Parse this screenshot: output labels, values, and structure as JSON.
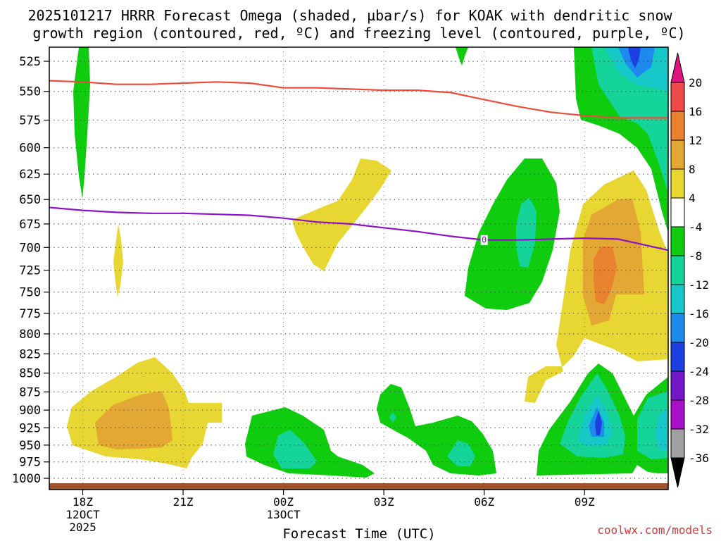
{
  "chart_data": {
    "type": "time-height",
    "title_line1": "2025101217 HRRR Forecast Omega (shaded, µbar/s) for KOAK with dendritic snow",
    "title_line2": "growth region (contoured, red, ºC) and freezing level (contoured, purple, ºC)",
    "xlabel": "Forecast Time (UTC)",
    "credit": "coolwx.com/models",
    "y_ticks": [
      525,
      550,
      575,
      600,
      625,
      650,
      675,
      700,
      725,
      750,
      775,
      800,
      825,
      850,
      875,
      900,
      925,
      950,
      975,
      1000
    ],
    "x_ticks": [
      {
        "hour": 18,
        "label": "18Z",
        "date": "12OCT",
        "year": "2025"
      },
      {
        "hour": 21,
        "label": "21Z",
        "date": "",
        "year": ""
      },
      {
        "hour": 24,
        "label": "00Z",
        "date": "13OCT",
        "year": ""
      },
      {
        "hour": 27,
        "label": "03Z",
        "date": "",
        "year": ""
      },
      {
        "hour": 30,
        "label": "06Z",
        "date": "",
        "year": ""
      },
      {
        "hour": 33,
        "label": "09Z",
        "date": "",
        "year": ""
      }
    ],
    "x_range_hours": [
      17,
      35.5
    ],
    "colorbar": {
      "units": "µbar/s",
      "tick_labels": [
        "20",
        "16",
        "12",
        "8",
        "4",
        "-4",
        "-8",
        "-12",
        "-16",
        "-20",
        "-24",
        "-28",
        "-32",
        "-36"
      ],
      "bands": [
        {
          "from": 16,
          "to": 20,
          "color": "#ee4a4a"
        },
        {
          "from": 12,
          "to": 16,
          "color": "#e8822e"
        },
        {
          "from": 8,
          "to": 12,
          "color": "#e3a833"
        },
        {
          "from": 4,
          "to": 8,
          "color": "#e8d633"
        },
        {
          "from": -4,
          "to": 4,
          "color": "#ffffff"
        },
        {
          "from": -8,
          "to": -4,
          "color": "#0fcc0f"
        },
        {
          "from": -12,
          "to": -8,
          "color": "#14d49a"
        },
        {
          "from": -16,
          "to": -12,
          "color": "#17c8c8"
        },
        {
          "from": -20,
          "to": -16,
          "color": "#1e8aee"
        },
        {
          "from": -24,
          "to": -20,
          "color": "#1d3fe0"
        },
        {
          "from": -28,
          "to": -24,
          "color": "#7217c8"
        },
        {
          "from": -32,
          "to": -28,
          "color": "#a70fc8"
        },
        {
          "from": -36,
          "to": -32,
          "color": "#a0a0a0"
        }
      ],
      "over_color": "#e0147e",
      "under_color": "#000000"
    },
    "dendritic_line": {
      "color": "#ee4a3a",
      "points": [
        [
          17,
          541
        ],
        [
          18,
          542
        ],
        [
          19,
          544
        ],
        [
          20,
          544
        ],
        [
          21,
          543
        ],
        [
          22,
          542
        ],
        [
          23,
          543
        ],
        [
          24,
          547
        ],
        [
          25,
          547
        ],
        [
          26,
          548
        ],
        [
          27,
          549
        ],
        [
          28,
          549
        ],
        [
          29,
          551
        ],
        [
          30,
          557
        ],
        [
          31,
          563
        ],
        [
          32,
          568
        ],
        [
          33,
          571
        ],
        [
          34,
          573
        ],
        [
          35.5,
          573
        ]
      ]
    },
    "freezing_line": {
      "color": "#8e10c8",
      "label": "0",
      "label_at": [
        30,
        692
      ],
      "points": [
        [
          17,
          658
        ],
        [
          18,
          661
        ],
        [
          19,
          663
        ],
        [
          20,
          664
        ],
        [
          21,
          664
        ],
        [
          22,
          665
        ],
        [
          23,
          666
        ],
        [
          24,
          669
        ],
        [
          25,
          673
        ],
        [
          26,
          675
        ],
        [
          27,
          679
        ],
        [
          28,
          683
        ],
        [
          29,
          688
        ],
        [
          30,
          692
        ],
        [
          31,
          692
        ],
        [
          32,
          691
        ],
        [
          33,
          690
        ],
        [
          34,
          691
        ],
        [
          35.5,
          703
        ]
      ]
    },
    "terrain": {
      "color": "#a0522d",
      "from_hpa": 1011
    }
  }
}
